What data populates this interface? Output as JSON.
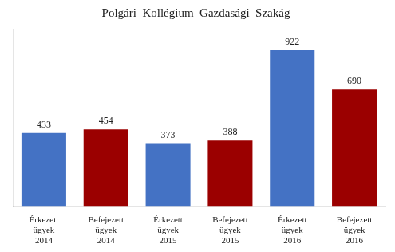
{
  "chart_data": {
    "type": "bar",
    "title": "Polgári  Kollégium  Gazdasági  Szakág",
    "categories": [
      "Érkezett\nügyek\n2014",
      "Befejezett\nügyek\n2014",
      "Érkezett\nügyek\n2015",
      "Befejezett\nügyek\n2015",
      "Érkezett\nügyek\n2016",
      "Befejezett\nügyek\n2016"
    ],
    "values": [
      433,
      454,
      373,
      388,
      922,
      690
    ],
    "colors": [
      "#4472C4",
      "#9B0000",
      "#4472C4",
      "#9B0000",
      "#4472C4",
      "#9B0000"
    ],
    "ylim": [
      0,
      1050
    ],
    "yticks": [],
    "grid": false,
    "data_labels": true,
    "tick_labels": "x"
  }
}
